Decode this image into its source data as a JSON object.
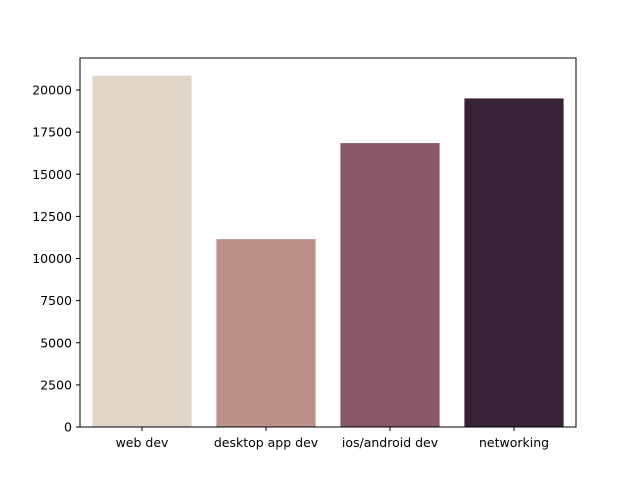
{
  "chart_data": {
    "type": "bar",
    "title": "",
    "xlabel": "",
    "ylabel": "",
    "categories": [
      "web dev",
      "desktop app dev",
      "ios/android dev",
      "networking"
    ],
    "values": [
      20850,
      11150,
      16850,
      19500
    ],
    "colors": [
      "#e1d5c6",
      "#bc918a",
      "#885869",
      "#372134"
    ],
    "ylim": [
      0,
      21900
    ],
    "yticks": [
      0,
      2500,
      5000,
      7500,
      10000,
      12500,
      15000,
      17500,
      20000
    ],
    "grid": false,
    "legend": "none"
  }
}
